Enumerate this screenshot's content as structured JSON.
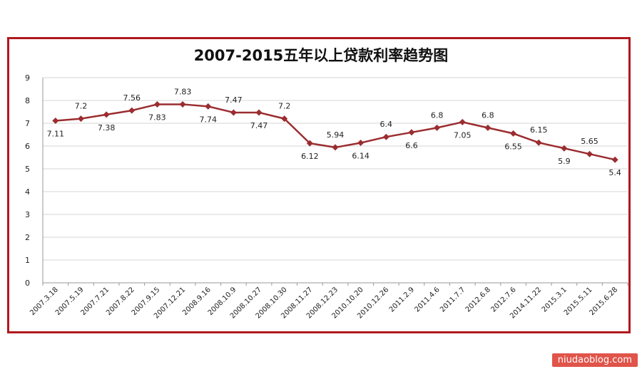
{
  "chart_data": {
    "type": "line",
    "title": "2007-2015五年以上贷款利率趋势图",
    "categories": [
      "2007.3.18",
      "2007.5.19",
      "2007.7.21",
      "2007.8.22",
      "2007.9.15",
      "2007.12.21",
      "2008.9.16",
      "2008.10.9",
      "2008.10.27",
      "2008.10.30",
      "2008.11.27",
      "2008.12.23",
      "2010.10.20",
      "2010.12.26",
      "2011.2.9",
      "2011.4.6",
      "2011.7.7",
      "2012.6.8",
      "2012.7.6",
      "2014.11.22",
      "2015.3.1",
      "2015.5.11",
      "2015.6.28"
    ],
    "values": [
      7.11,
      7.2,
      7.38,
      7.56,
      7.83,
      7.83,
      7.74,
      7.47,
      7.47,
      7.2,
      6.12,
      5.94,
      6.14,
      6.4,
      6.6,
      6.8,
      7.05,
      6.8,
      6.55,
      6.15,
      5.9,
      5.65,
      5.4
    ],
    "data_labels": [
      "7.11",
      "7.2",
      "7.38",
      "7.56",
      "7.83",
      "7.83",
      "7.74",
      "7.47",
      "7.47",
      "7.2",
      "6.12",
      "5.94",
      "6.14",
      "6.4",
      "6.6",
      "6.8",
      "7.05",
      "6.8",
      "6.55",
      "6.15",
      "5.9",
      "5.65",
      "5.4"
    ],
    "label_position": [
      "below",
      "above",
      "below",
      "above",
      "below",
      "above",
      "below",
      "above",
      "below",
      "above",
      "below",
      "above",
      "below",
      "above",
      "below",
      "above",
      "below",
      "above",
      "below",
      "above",
      "below",
      "above",
      "below"
    ],
    "ylim": [
      0,
      9
    ],
    "yticks": [
      "0",
      "1",
      "2",
      "3",
      "4",
      "5",
      "6",
      "7",
      "8",
      "9"
    ],
    "grid": "horizontal",
    "line_color": "#9b2d30"
  },
  "watermark": "niudaoblog.com"
}
